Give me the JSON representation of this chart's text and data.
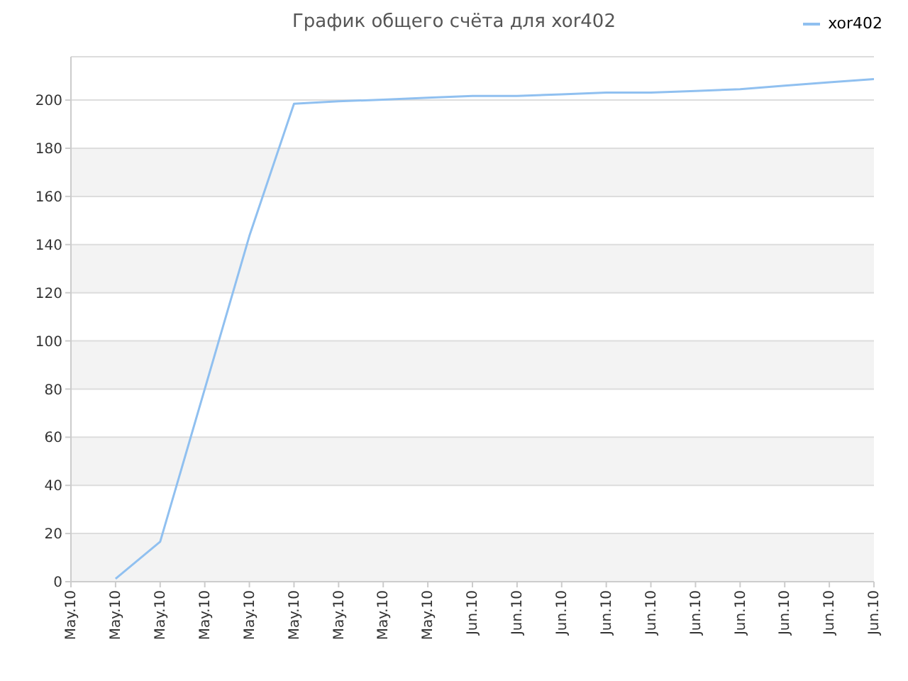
{
  "chart_data": {
    "type": "line",
    "title": "График общего счёта для xor402",
    "categories": [
      "May.10",
      "May.10",
      "May.10",
      "May.10",
      "May.10",
      "May.10",
      "May.10",
      "May.10",
      "May.10",
      "Jun.10",
      "Jun.10",
      "Jun.10",
      "Jun.10",
      "Jun.10",
      "Jun.10",
      "Jun.10",
      "Jun.10",
      "Jun.10",
      "Jun.10"
    ],
    "ylim": [
      0,
      218
    ],
    "yticks": [
      0,
      20,
      40,
      60,
      80,
      100,
      120,
      140,
      160,
      180,
      200
    ],
    "grid": "y",
    "legend": "top right",
    "marker": "none",
    "series": [
      {
        "name": "xor402",
        "color": "#90c0f0",
        "values": [
          null,
          1.2,
          16.6,
          80,
          143.6,
          198.5,
          199.5,
          200.2,
          201,
          201.7,
          201.7,
          202.4,
          203.1,
          203.1,
          203.8,
          204.5,
          206,
          207.4,
          208.7
        ]
      }
    ]
  }
}
